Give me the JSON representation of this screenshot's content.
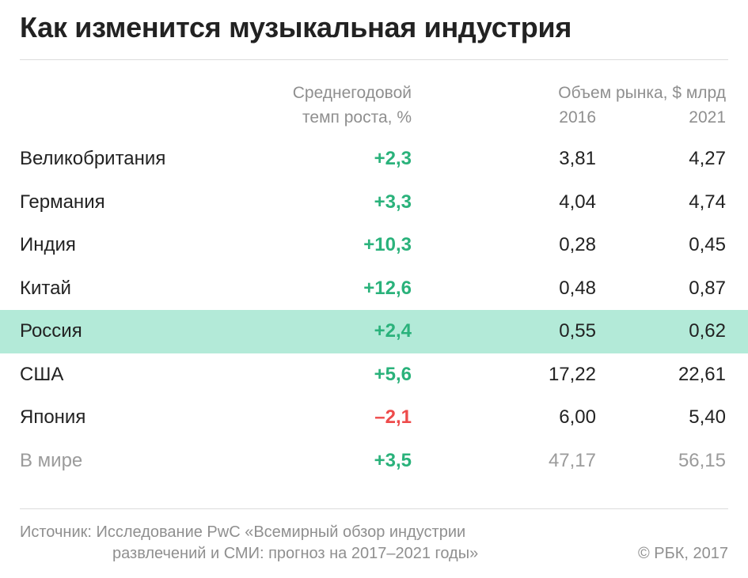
{
  "title": "Как изменится музыкальная индустрия",
  "headers": {
    "growth_line1": "Среднегодовой",
    "growth_line2": "темп роста, %",
    "market": "Объем рынка, $ млрд",
    "year1": "2016",
    "year2": "2021"
  },
  "rows": [
    {
      "country": "Великобритания",
      "growth": "+2,3",
      "v2016": "3,81",
      "v2021": "4,27"
    },
    {
      "country": "Германия",
      "growth": "+3,3",
      "v2016": "4,04",
      "v2021": "4,74"
    },
    {
      "country": "Индия",
      "growth": "+10,3",
      "v2016": "0,28",
      "v2021": "0,45"
    },
    {
      "country": "Китай",
      "growth": "+12,6",
      "v2016": "0,48",
      "v2021": "0,87"
    },
    {
      "country": "Россия",
      "growth": "+2,4",
      "v2016": "0,55",
      "v2021": "0,62"
    },
    {
      "country": "США",
      "growth": "+5,6",
      "v2016": "17,22",
      "v2021": "22,61"
    },
    {
      "country": "Япония",
      "growth": "–2,1",
      "v2016": "6,00",
      "v2021": "5,40"
    },
    {
      "country": "В мире",
      "growth": "+3,5",
      "v2016": "47,17",
      "v2021": "56,15"
    }
  ],
  "highlight_row": "Россия",
  "colors": {
    "positive": "#2ab27b",
    "negative": "#ee4b4b",
    "highlight": "#b3ead8",
    "muted": "#8f8f8f"
  },
  "footer": {
    "source_line1": "Источник: Исследование PwC «Всемирный обзор индустрии",
    "source_line2": "развлечений и СМИ: прогноз на 2017–2021 годы»",
    "copyright": "© РБК, 2017"
  }
}
